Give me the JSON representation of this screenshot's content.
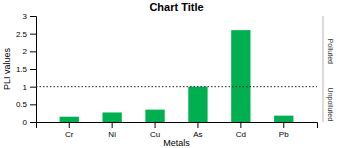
{
  "chart_data": {
    "type": "bar",
    "title": "Chart Title",
    "xlabel": "Metals",
    "ylabel": "PLI values",
    "categories": [
      "Cr",
      "Ni",
      "Cu",
      "As",
      "Cd",
      "Pb"
    ],
    "values": [
      0.15,
      0.27,
      0.35,
      1.0,
      2.6,
      0.18
    ],
    "color": "#00b050",
    "ylim": [
      0,
      3.0
    ],
    "yticks": [
      0,
      0.5,
      1,
      1.5,
      2,
      2.5,
      3
    ],
    "hline": {
      "value": 1.0,
      "color": "#222222"
    },
    "annotations": [
      {
        "text": "Polluted",
        "side": "above"
      },
      {
        "text": "Unpolluted",
        "side": "below"
      }
    ]
  }
}
